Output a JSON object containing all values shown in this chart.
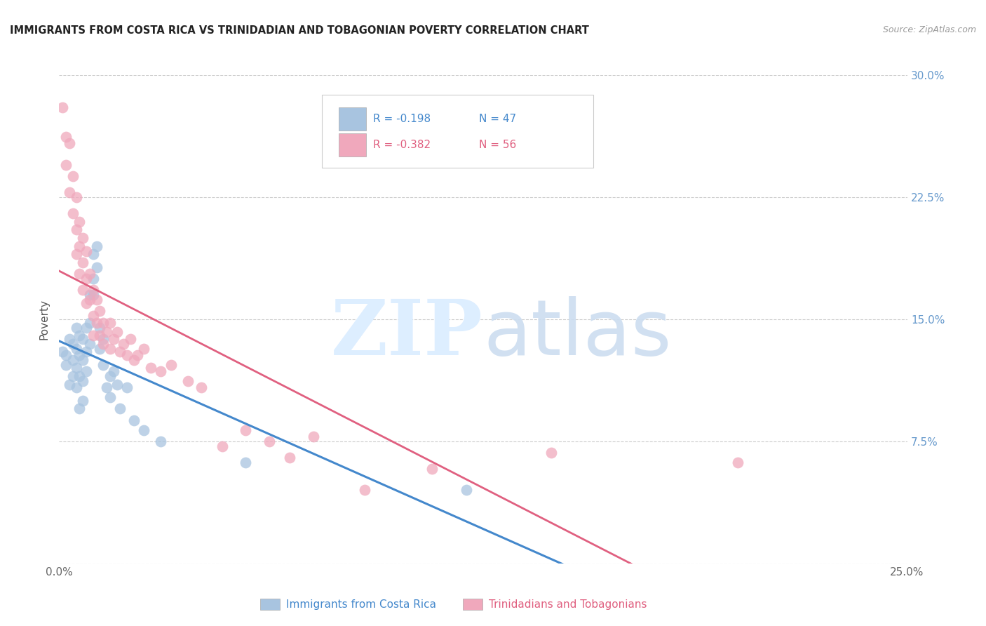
{
  "title": "IMMIGRANTS FROM COSTA RICA VS TRINIDADIAN AND TOBAGONIAN POVERTY CORRELATION CHART",
  "source": "Source: ZipAtlas.com",
  "ylabel": "Poverty",
  "xlim": [
    0.0,
    0.25
  ],
  "ylim": [
    0.0,
    0.3
  ],
  "blue_R": "-0.198",
  "blue_N": "47",
  "pink_R": "-0.382",
  "pink_N": "56",
  "legend_label_blue": "Immigrants from Costa Rica",
  "legend_label_pink": "Trinidadians and Tobagonians",
  "blue_color": "#a8c4e0",
  "pink_color": "#f0a8bc",
  "blue_line_color": "#4488cc",
  "pink_line_color": "#e06080",
  "background_color": "#ffffff",
  "grid_color": "#cccccc",
  "blue_scatter_x": [
    0.001,
    0.002,
    0.002,
    0.003,
    0.003,
    0.004,
    0.004,
    0.004,
    0.005,
    0.005,
    0.005,
    0.005,
    0.006,
    0.006,
    0.006,
    0.006,
    0.007,
    0.007,
    0.007,
    0.007,
    0.008,
    0.008,
    0.008,
    0.009,
    0.009,
    0.009,
    0.01,
    0.01,
    0.01,
    0.011,
    0.011,
    0.012,
    0.012,
    0.013,
    0.013,
    0.014,
    0.015,
    0.015,
    0.016,
    0.017,
    0.018,
    0.02,
    0.022,
    0.025,
    0.03,
    0.055,
    0.12
  ],
  "blue_scatter_y": [
    0.13,
    0.128,
    0.122,
    0.138,
    0.11,
    0.135,
    0.125,
    0.115,
    0.145,
    0.132,
    0.12,
    0.108,
    0.14,
    0.128,
    0.115,
    0.095,
    0.138,
    0.125,
    0.112,
    0.1,
    0.145,
    0.13,
    0.118,
    0.165,
    0.148,
    0.135,
    0.19,
    0.175,
    0.165,
    0.195,
    0.182,
    0.145,
    0.132,
    0.138,
    0.122,
    0.108,
    0.115,
    0.102,
    0.118,
    0.11,
    0.095,
    0.108,
    0.088,
    0.082,
    0.075,
    0.062,
    0.045
  ],
  "pink_scatter_x": [
    0.001,
    0.002,
    0.002,
    0.003,
    0.003,
    0.004,
    0.004,
    0.005,
    0.005,
    0.005,
    0.006,
    0.006,
    0.006,
    0.007,
    0.007,
    0.007,
    0.008,
    0.008,
    0.008,
    0.009,
    0.009,
    0.01,
    0.01,
    0.01,
    0.011,
    0.011,
    0.012,
    0.012,
    0.013,
    0.013,
    0.014,
    0.015,
    0.015,
    0.016,
    0.017,
    0.018,
    0.019,
    0.02,
    0.021,
    0.022,
    0.023,
    0.025,
    0.027,
    0.03,
    0.033,
    0.038,
    0.042,
    0.048,
    0.055,
    0.062,
    0.068,
    0.075,
    0.09,
    0.11,
    0.145,
    0.2
  ],
  "pink_scatter_y": [
    0.28,
    0.262,
    0.245,
    0.228,
    0.258,
    0.215,
    0.238,
    0.225,
    0.205,
    0.19,
    0.21,
    0.195,
    0.178,
    0.2,
    0.185,
    0.168,
    0.192,
    0.175,
    0.16,
    0.178,
    0.162,
    0.168,
    0.152,
    0.14,
    0.162,
    0.148,
    0.155,
    0.14,
    0.148,
    0.135,
    0.142,
    0.148,
    0.132,
    0.138,
    0.142,
    0.13,
    0.135,
    0.128,
    0.138,
    0.125,
    0.128,
    0.132,
    0.12,
    0.118,
    0.122,
    0.112,
    0.108,
    0.072,
    0.082,
    0.075,
    0.065,
    0.078,
    0.045,
    0.058,
    0.068,
    0.062
  ]
}
